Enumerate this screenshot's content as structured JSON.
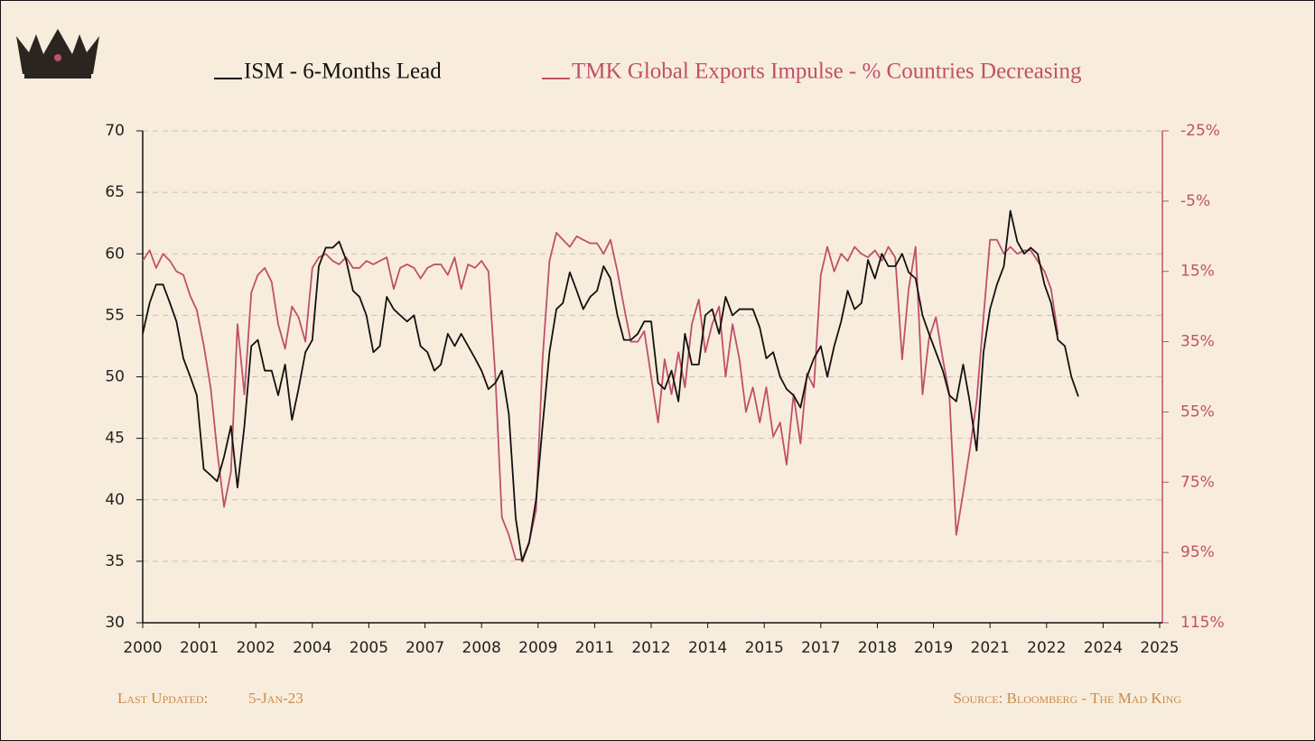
{
  "chart_data": {
    "type": "line",
    "x": [
      2000,
      2000.17,
      2000.33,
      2000.5,
      2000.67,
      2000.83,
      2001,
      2001.17,
      2001.33,
      2001.5,
      2001.67,
      2001.83,
      2002,
      2002.17,
      2002.33,
      2002.5,
      2002.67,
      2002.83,
      2003,
      2003.17,
      2003.33,
      2003.5,
      2003.67,
      2003.83,
      2004,
      2004.17,
      2004.33,
      2004.5,
      2004.67,
      2004.83,
      2005,
      2005.17,
      2005.33,
      2005.5,
      2005.67,
      2005.83,
      2006,
      2006.17,
      2006.33,
      2006.5,
      2006.67,
      2006.83,
      2007,
      2007.17,
      2007.33,
      2007.5,
      2007.67,
      2007.83,
      2008,
      2008.17,
      2008.33,
      2008.5,
      2008.67,
      2008.83,
      2009,
      2009.17,
      2009.33,
      2009.5,
      2009.67,
      2009.83,
      2010,
      2010.17,
      2010.33,
      2010.5,
      2010.67,
      2010.83,
      2011,
      2011.17,
      2011.33,
      2011.5,
      2011.67,
      2011.83,
      2012,
      2012.17,
      2012.33,
      2012.5,
      2012.67,
      2012.83,
      2013,
      2013.17,
      2013.33,
      2013.5,
      2013.67,
      2013.83,
      2014,
      2014.17,
      2014.33,
      2014.5,
      2014.67,
      2014.83,
      2015,
      2015.17,
      2015.33,
      2015.5,
      2015.67,
      2015.83,
      2016,
      2016.17,
      2016.33,
      2016.5,
      2016.67,
      2016.83,
      2017,
      2017.17,
      2017.33,
      2017.5,
      2017.67,
      2017.83,
      2018,
      2018.17,
      2018.33,
      2018.5,
      2018.67,
      2018.83,
      2019,
      2019.17,
      2019.33,
      2019.5,
      2019.67,
      2019.83,
      2020,
      2020.17,
      2020.33,
      2020.5,
      2020.67,
      2020.83,
      2021,
      2021.17,
      2021.33,
      2021.5,
      2021.67,
      2021.83,
      2022,
      2022.17,
      2022.33,
      2022.5,
      2022.67,
      2022.83,
      2023
    ],
    "series": [
      {
        "name": "ISM - 6-Months Lead",
        "color": "#111111",
        "axis": "y",
        "values": [
          53.5,
          56,
          57.5,
          57.5,
          56,
          54.5,
          51.5,
          50,
          48.5,
          42.5,
          42,
          41.5,
          43.5,
          46,
          41,
          46,
          52.5,
          53,
          50.5,
          50.5,
          48.5,
          51,
          46.5,
          49,
          52,
          53,
          59,
          60.5,
          60.5,
          61,
          59.5,
          57,
          56.5,
          55,
          52,
          52.5,
          56.5,
          55.5,
          55,
          54.5,
          55,
          52.5,
          52,
          50.5,
          51,
          53.5,
          52.5,
          53.5,
          52.5,
          51.5,
          50.5,
          49,
          49.5,
          50.5,
          47,
          38.5,
          35,
          36.5,
          40,
          46,
          52,
          55.5,
          56,
          58.5,
          57,
          55.5,
          56.5,
          57,
          59,
          58,
          55,
          53,
          53,
          53.5,
          54.5,
          54.5,
          49.5,
          49,
          50.5,
          48,
          53.5,
          51,
          51,
          55,
          55.5,
          53.5,
          56.5,
          55,
          55.5,
          55.5,
          55.5,
          54,
          51.5,
          52,
          50,
          49,
          48.5,
          47.5,
          50,
          51.5,
          52.5,
          50,
          52.5,
          54.5,
          57,
          55.5,
          56,
          59.5,
          58,
          60,
          59,
          59,
          60,
          58.5,
          58,
          55,
          53.5,
          52,
          50.5,
          48.5,
          48,
          51,
          48,
          44,
          52,
          55.5,
          57.5,
          59,
          63.5,
          61,
          60,
          60.5,
          60,
          57.5,
          56,
          53,
          52.5,
          50,
          48.4
        ]
      },
      {
        "name": "TMK Global Exports Impulse - % Countries Decreasing",
        "color": "#c0506a",
        "axis": "y2",
        "values": [
          12,
          9,
          14,
          10,
          12,
          15,
          16,
          22,
          26,
          36,
          48,
          66,
          82,
          72,
          30,
          50,
          21,
          16,
          14,
          18,
          30,
          37,
          25,
          28,
          35,
          14,
          11,
          10,
          12,
          13,
          11,
          14,
          14,
          12,
          13,
          12,
          11,
          20,
          14,
          13,
          14,
          17,
          14,
          13,
          13,
          16,
          11,
          20,
          13,
          14,
          12,
          15,
          45,
          85,
          90,
          97,
          97,
          92,
          83,
          40,
          12,
          4,
          6,
          8,
          5,
          6,
          7,
          7,
          10,
          6,
          15,
          25,
          35,
          35,
          32,
          45,
          58,
          40,
          50,
          38,
          48,
          30,
          23,
          38,
          30,
          25,
          45,
          30,
          40,
          55,
          48,
          58,
          48,
          62,
          58,
          70,
          50,
          64,
          44,
          48,
          16,
          8,
          15,
          10,
          12,
          8,
          10,
          11,
          9,
          12,
          8,
          11,
          40,
          20,
          8,
          50,
          34,
          28,
          40,
          50,
          90,
          78,
          66,
          52,
          28,
          6,
          6,
          10,
          8,
          10,
          9,
          9,
          12,
          15,
          20,
          33,
          null,
          null,
          null
        ]
      }
    ],
    "xlim": [
      2000,
      2025
    ],
    "xticks": [
      {
        "value": 2000,
        "label": "2000"
      },
      {
        "value": 2001.39,
        "label": "2001"
      },
      {
        "value": 2002.78,
        "label": "2002"
      },
      {
        "value": 2004.17,
        "label": "2004"
      },
      {
        "value": 2005.56,
        "label": "2005"
      },
      {
        "value": 2006.94,
        "label": "2007"
      },
      {
        "value": 2008.33,
        "label": "2008"
      },
      {
        "value": 2009.72,
        "label": "2009"
      },
      {
        "value": 2011.11,
        "label": "2011"
      },
      {
        "value": 2012.5,
        "label": "2012"
      },
      {
        "value": 2013.89,
        "label": "2014"
      },
      {
        "value": 2015.28,
        "label": "2015"
      },
      {
        "value": 2016.67,
        "label": "2017"
      },
      {
        "value": 2018.06,
        "label": "2018"
      },
      {
        "value": 2019.44,
        "label": "2019"
      },
      {
        "value": 2020.83,
        "label": "2021"
      },
      {
        "value": 2022.22,
        "label": "2022"
      },
      {
        "value": 2023.61,
        "label": "2024"
      },
      {
        "value": 2025,
        "label": "2025"
      }
    ],
    "ylim": [
      30,
      70
    ],
    "yticks": [
      30,
      35,
      40,
      45,
      50,
      55,
      60,
      65,
      70
    ],
    "y2lim": [
      115,
      -25
    ],
    "y2ticks": [
      {
        "value": 115,
        "label": "115%"
      },
      {
        "value": 95,
        "label": "95%"
      },
      {
        "value": 75,
        "label": "75%"
      },
      {
        "value": 55,
        "label": "55%"
      },
      {
        "value": 35,
        "label": "35%"
      },
      {
        "value": 15,
        "label": "15%"
      },
      {
        "value": -5,
        "label": "-5%"
      },
      {
        "value": -25,
        "label": "-25%"
      }
    ],
    "y2color": "#c0506a",
    "grid": true,
    "legend": "top",
    "annotations": {
      "last_updated_label": "Last Updated:",
      "last_updated": "5-Jan-23",
      "source": "Source: Bloomberg - The Mad King"
    }
  }
}
